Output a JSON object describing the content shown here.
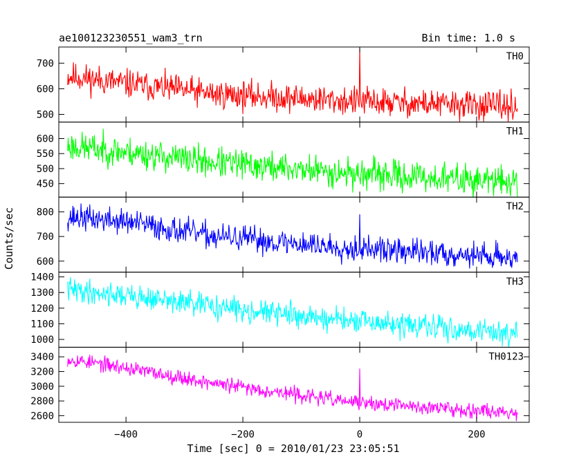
{
  "chart_data": {
    "type": "line",
    "title": "ae100123230551_wam3_trn",
    "bin_time": "Bin time: 1.0 s",
    "xlabel": "Time [sec] 0 = 2010/01/23 23:05:51",
    "ylabel": "Counts/sec",
    "xlim": [
      -515,
      290
    ],
    "x_ticks": [
      -400,
      -200,
      0,
      200
    ],
    "x_tick_labels": [
      "−400",
      "−200",
      "0",
      "200"
    ],
    "x_range": [
      -500,
      270
    ],
    "grid": false,
    "panels": [
      {
        "name": "TH0",
        "color": "#ff0000",
        "ylim": [
          470,
          763
        ],
        "y_ticks": [
          500,
          600,
          700
        ],
        "y_tick_labels": [
          "500",
          "600",
          "700"
        ],
        "trend": [
          [
            -500,
            650
          ],
          [
            -400,
            620
          ],
          [
            -250,
            580
          ],
          [
            0,
            550
          ],
          [
            270,
            530
          ]
        ],
        "noise": 28,
        "seed": 11,
        "spike": {
          "x": 0,
          "y": 760
        }
      },
      {
        "name": "TH1",
        "color": "#00ff00",
        "ylim": [
          405,
          655
        ],
        "y_ticks": [
          450,
          500,
          550,
          600
        ],
        "y_tick_labels": [
          "450",
          "500",
          "550",
          "600"
        ],
        "trend": [
          [
            -500,
            575
          ],
          [
            -400,
            555
          ],
          [
            -250,
            520
          ],
          [
            0,
            482
          ],
          [
            270,
            455
          ]
        ],
        "noise": 25,
        "seed": 23,
        "spike": null
      },
      {
        "name": "TH2",
        "color": "#0000ff",
        "ylim": [
          555,
          860
        ],
        "y_ticks": [
          600,
          700,
          800
        ],
        "y_tick_labels": [
          "600",
          "700",
          "800"
        ],
        "trend": [
          [
            -500,
            780
          ],
          [
            -400,
            760
          ],
          [
            -250,
            700
          ],
          [
            0,
            650
          ],
          [
            270,
            615
          ]
        ],
        "noise": 26,
        "seed": 37,
        "spike": {
          "x": 0,
          "y": 790
        }
      },
      {
        "name": "TH3",
        "color": "#00ffff",
        "ylim": [
          950,
          1430
        ],
        "y_ticks": [
          1000,
          1100,
          1200,
          1300,
          1400
        ],
        "y_tick_labels": [
          "1000",
          "1100",
          "1200",
          "1300",
          "1400"
        ],
        "trend": [
          [
            -500,
            1320
          ],
          [
            -400,
            1280
          ],
          [
            -250,
            1210
          ],
          [
            0,
            1110
          ],
          [
            270,
            1040
          ]
        ],
        "noise": 38,
        "seed": 41,
        "spike": null
      },
      {
        "name": "TH0123",
        "color": "#ff00ff",
        "ylim": [
          2510,
          3530
        ],
        "y_ticks": [
          2600,
          2800,
          3000,
          3200,
          3400
        ],
        "y_tick_labels": [
          "2600",
          "2800",
          "3000",
          "3200",
          "3400"
        ],
        "trend": [
          [
            -500,
            3370
          ],
          [
            -400,
            3250
          ],
          [
            -250,
            3040
          ],
          [
            0,
            2770
          ],
          [
            270,
            2640
          ]
        ],
        "noise": 50,
        "seed": 53,
        "spike": {
          "x": 0,
          "y": 3240
        }
      }
    ]
  }
}
